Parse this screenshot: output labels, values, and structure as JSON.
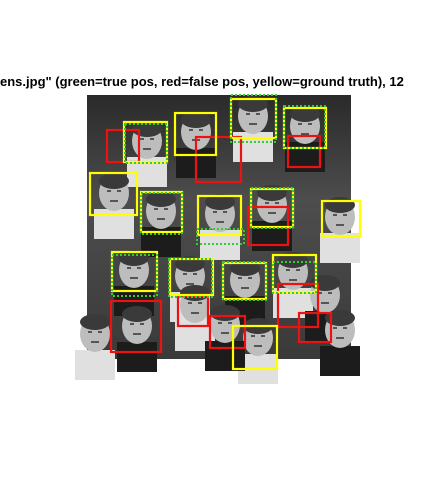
{
  "figure": {
    "title": "ens.jpg\" (green=true pos, red=false pos, yellow=ground truth), 12",
    "colors": {
      "background": "#ffffff",
      "true_pos": "#33cc33",
      "false_pos": "#ee1111",
      "ground_truth": "#ffff00"
    }
  }
}
